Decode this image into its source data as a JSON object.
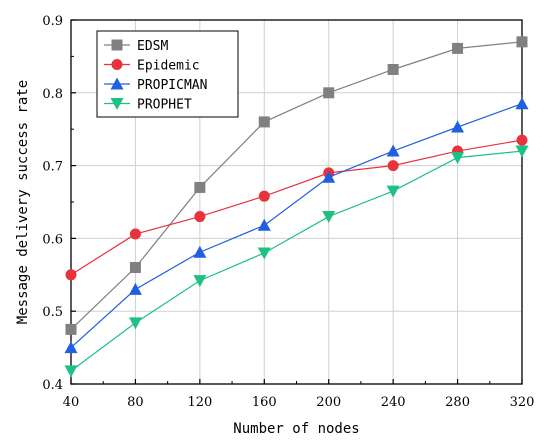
{
  "chart_data": {
    "type": "line",
    "title": "",
    "xlabel": "Number of nodes",
    "ylabel": "Message delivery success rate",
    "x": [
      40,
      80,
      120,
      160,
      200,
      240,
      280,
      320
    ],
    "xlim": [
      40,
      320
    ],
    "ylim": [
      0.4,
      0.9
    ],
    "x_ticks": [
      "40",
      "80",
      "120",
      "160",
      "200",
      "240",
      "280",
      "320"
    ],
    "y_ticks": [
      "0.4",
      "0.5",
      "0.6",
      "0.7",
      "0.8",
      "0.9"
    ],
    "grid": true,
    "legend_position": "top-left",
    "series": [
      {
        "name": "EDSM",
        "color": "#808080",
        "marker": "square",
        "values": [
          0.475,
          0.56,
          0.67,
          0.76,
          0.8,
          0.832,
          0.861,
          0.87
        ]
      },
      {
        "name": "Epidemic",
        "color": "#e8323c",
        "marker": "circle",
        "values": [
          0.55,
          0.606,
          0.63,
          0.658,
          0.69,
          0.7,
          0.72,
          0.735
        ]
      },
      {
        "name": "PROPICMAN",
        "color": "#1f5fe0",
        "marker": "triangle-up",
        "values": [
          0.45,
          0.53,
          0.581,
          0.618,
          0.684,
          0.72,
          0.753,
          0.785
        ]
      },
      {
        "name": "PROPHET",
        "color": "#1fc083",
        "marker": "triangle-down",
        "values": [
          0.418,
          0.484,
          0.542,
          0.58,
          0.63,
          0.665,
          0.711,
          0.72
        ]
      }
    ]
  }
}
